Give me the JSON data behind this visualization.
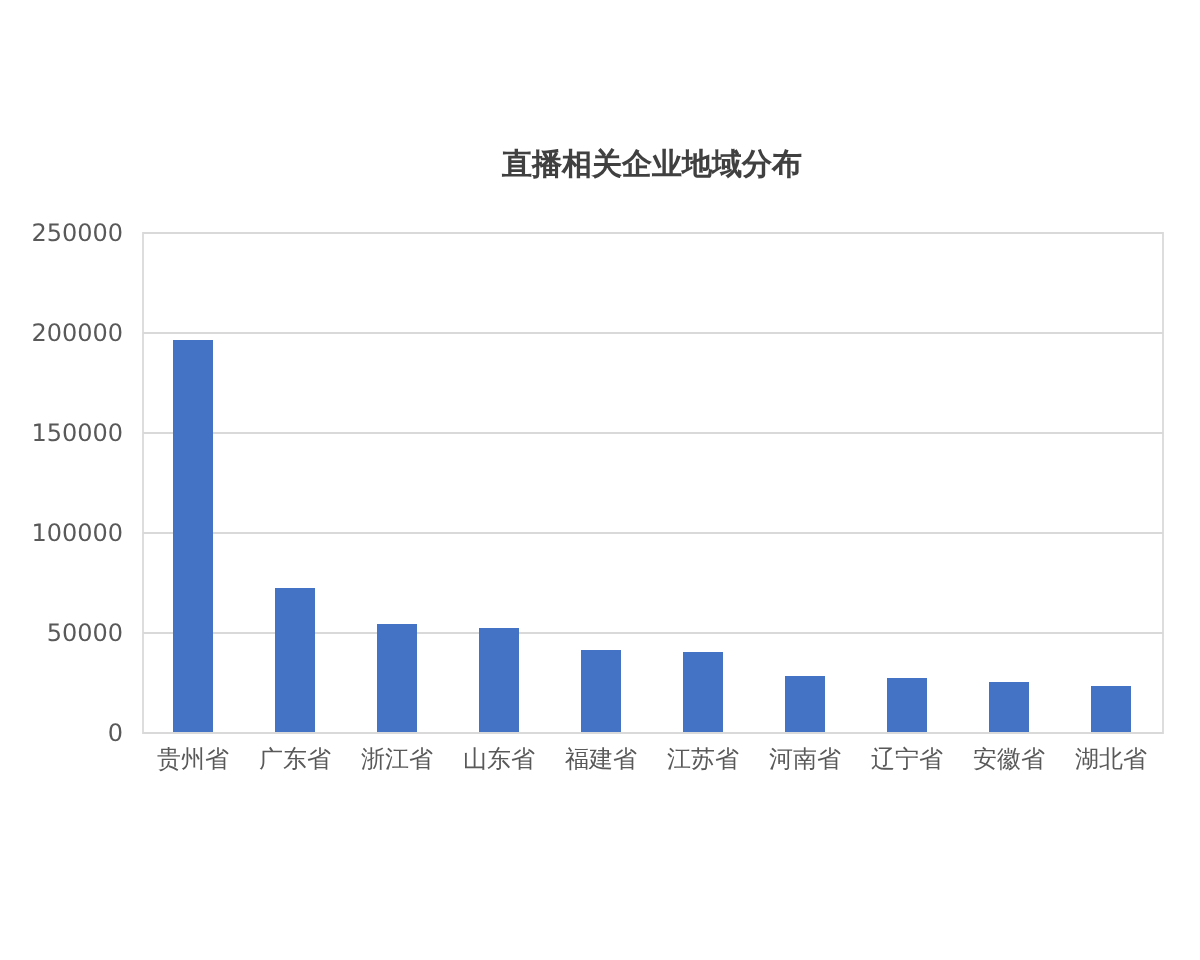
{
  "chart_data": {
    "type": "bar",
    "title": "直播相关企业地域分布",
    "categories": [
      "贵州省",
      "广东省",
      "浙江省",
      "山东省",
      "福建省",
      "江苏省",
      "河南省",
      "辽宁省",
      "安徽省",
      "湖北省"
    ],
    "values": [
      196000,
      72000,
      54000,
      52000,
      41000,
      40000,
      28000,
      27000,
      25000,
      23000
    ],
    "color": "#4472c4",
    "ylim": [
      0,
      250000
    ],
    "yticks": [
      0,
      50000,
      100000,
      150000,
      200000,
      250000
    ],
    "grid": "y"
  }
}
